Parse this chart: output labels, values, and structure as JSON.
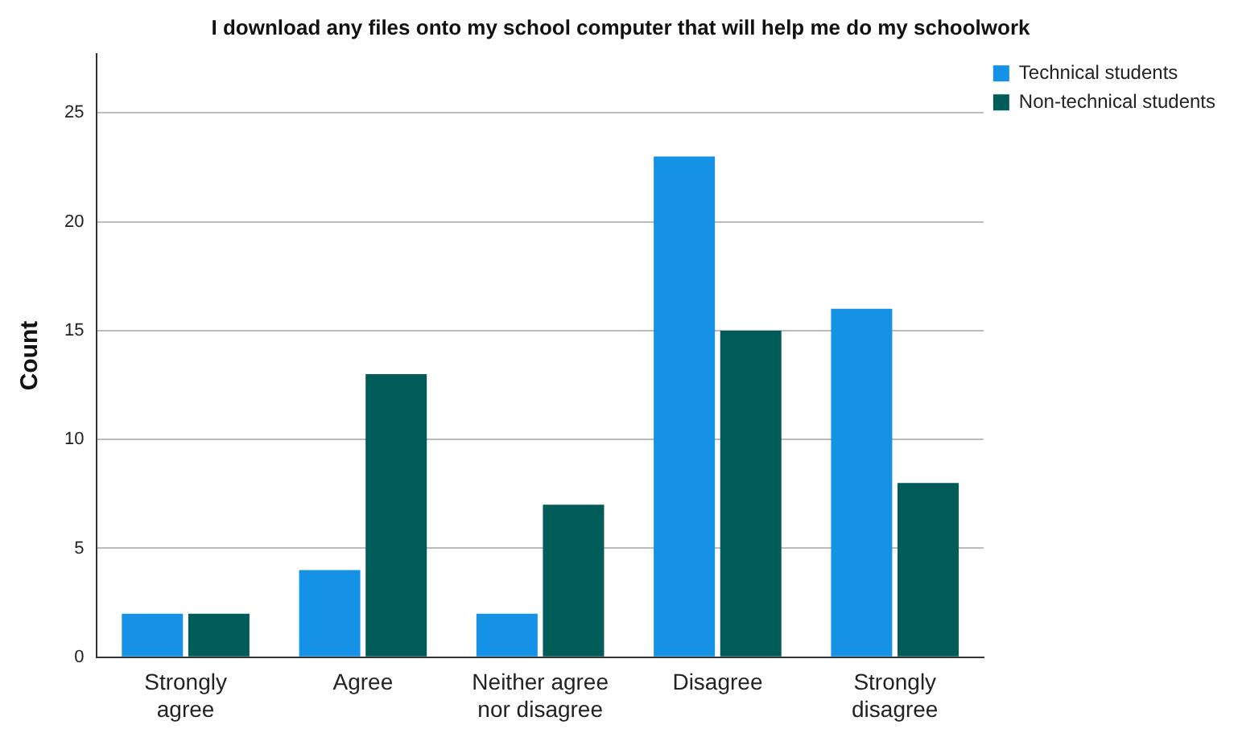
{
  "chart_data": {
    "type": "bar",
    "title": "I download any files onto my school computer that will help me do my schoolwork",
    "ylabel": "Count",
    "categories": [
      "Strongly agree",
      "Agree",
      "Neither agree nor disagree",
      "Disagree",
      "Strongly disagree"
    ],
    "series": [
      {
        "name": "Technical students",
        "color": "#1591e6",
        "values": [
          2,
          4,
          2,
          23,
          16
        ]
      },
      {
        "name": "Non-technical students",
        "color": "#005c58",
        "values": [
          2,
          13,
          7,
          15,
          8
        ]
      }
    ],
    "ylim": [
      0,
      27.7
    ],
    "yticks": [
      0,
      5,
      10,
      15,
      20,
      25
    ],
    "grid": "y",
    "legend": "top right"
  }
}
